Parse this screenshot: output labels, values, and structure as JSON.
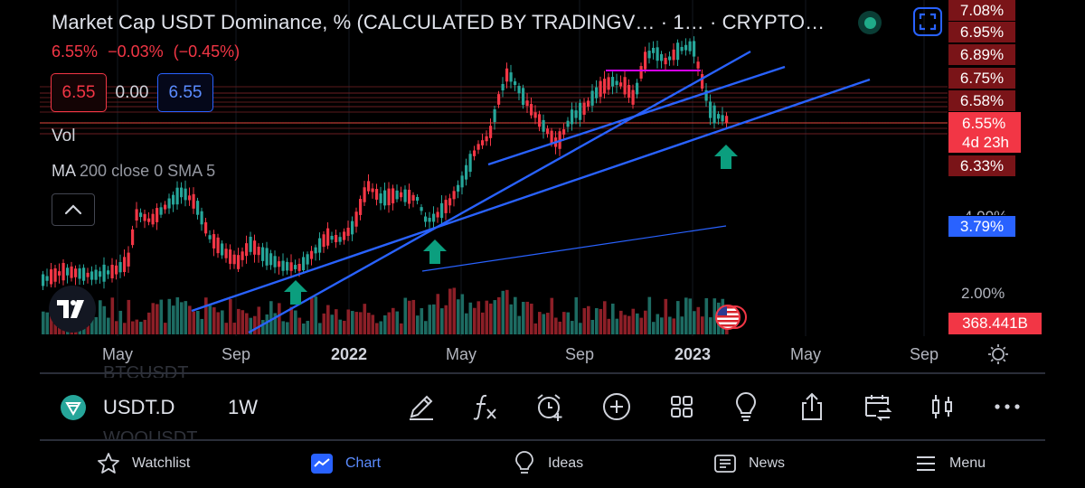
{
  "header": {
    "title": "Market Cap USDT Dominance, % (CALCULATED BY TRADINGV… · 1… · CRYPTO…",
    "price": "6.55%",
    "change": "−0.03%",
    "change_pct": "(−0.45%)"
  },
  "quote": {
    "bid": "6.55",
    "spread": "0.00",
    "ask": "6.55"
  },
  "indicators": {
    "volume_label": "Vol",
    "ma_name": "MA",
    "ma_params": "200 close 0 SMA 5"
  },
  "price_axis": {
    "labels": [
      "7.08%",
      "6.95%",
      "6.89%",
      "6.75%",
      "6.58%"
    ],
    "current_price": "6.55%",
    "countdown": "4d 23h",
    "low_label": "6.33%",
    "ma_label": "3.79%",
    "partial_label": "4.00%",
    "ticks": [
      "2.00%"
    ],
    "volume_label": "368.441B"
  },
  "time_axis": [
    {
      "label": "May",
      "bold": false
    },
    {
      "label": "Sep",
      "bold": false
    },
    {
      "label": "2022",
      "bold": true
    },
    {
      "label": "May",
      "bold": false
    },
    {
      "label": "Sep",
      "bold": false
    },
    {
      "label": "2023",
      "bold": true
    },
    {
      "label": "May",
      "bold": false
    },
    {
      "label": "Sep",
      "bold": false
    }
  ],
  "symbol_bar": {
    "ghost_above": "BTCUSDT",
    "symbol": "USDT.D",
    "interval": "1W",
    "ghost_below": "WOOUSDT",
    "tools": [
      "pencil-icon",
      "fx-icon",
      "alarm-add-icon",
      "plus-circle-icon",
      "grid-icon",
      "bulb-icon",
      "share-icon",
      "calendar-swap-icon",
      "candles-icon",
      "more-icon"
    ]
  },
  "bottom_nav": {
    "watchlist": "Watchlist",
    "chart": "Chart",
    "ideas": "Ideas",
    "news": "News",
    "menu": "Menu"
  },
  "colors": {
    "up": "#26a69a",
    "down": "#f23645",
    "trendline": "#2962ff",
    "accent": "#2962ff",
    "background": "#000000"
  }
}
